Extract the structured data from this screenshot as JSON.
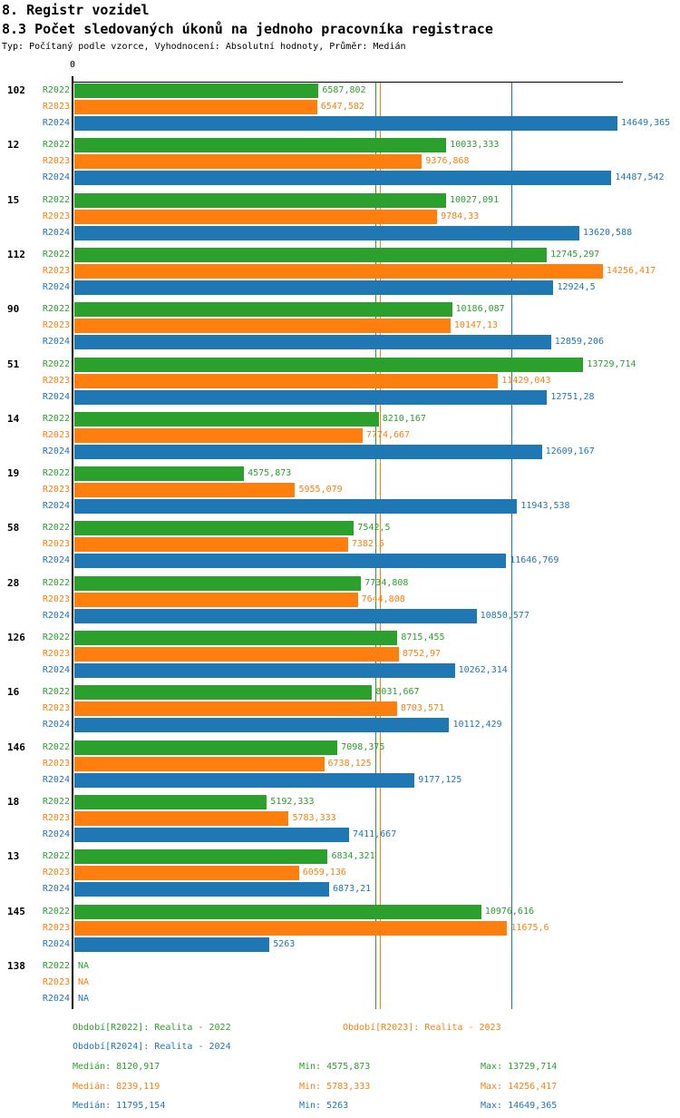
{
  "title": "8. Registr vozidel",
  "subtitle": "8.3 Počet sledovaných úkonů na jednoho pracovníka registrace",
  "meta": "Typ: Počítaný podle vzorce, Vyhodnocení: Absolutní hodnoty, Průměr: Medián",
  "colors": {
    "r2022": "#2ca02c",
    "r2023": "#ff7f0e",
    "r2024": "#1f77b4",
    "axis": "#000000"
  },
  "chart_data": {
    "type": "bar",
    "orientation": "horizontal",
    "axis_zero_label": "0",
    "grid": false,
    "xlim": [
      0,
      14649.365
    ],
    "na_text": "NA",
    "categories": [
      "102",
      "12",
      "15",
      "112",
      "90",
      "51",
      "14",
      "19",
      "58",
      "28",
      "126",
      "16",
      "146",
      "18",
      "13",
      "145",
      "138"
    ],
    "series": [
      {
        "name": "R2022",
        "color": "#2ca02c",
        "median": 8120.917,
        "values": [
          6587.802,
          10033.333,
          10027.091,
          12745.297,
          10186.087,
          13729.714,
          8210.167,
          4575.873,
          7542.5,
          7734.808,
          8715.455,
          8031.667,
          7098.375,
          5192.333,
          6834.321,
          10976.616,
          null
        ],
        "labels": [
          "6587,802",
          "10033,333",
          "10027,091",
          "12745,297",
          "10186,087",
          "13729,714",
          "8210,167",
          "4575,873",
          "7542,5",
          "7734,808",
          "8715,455",
          "8031,667",
          "7098,375",
          "5192,333",
          "6834,321",
          "10976,616",
          "NA"
        ]
      },
      {
        "name": "R2023",
        "color": "#ff7f0e",
        "median": 8239.119,
        "values": [
          6547.582,
          9376.868,
          9784.33,
          14256.417,
          10147.13,
          11429.043,
          7774.667,
          5955.079,
          7382.5,
          7644.808,
          8752.97,
          8703.571,
          6738.125,
          5783.333,
          6059.136,
          11675.6,
          null
        ],
        "labels": [
          "6547,582",
          "9376,868",
          "9784,33",
          "14256,417",
          "10147,13",
          "11429,043",
          "7774,667",
          "5955,079",
          "7382,5",
          "7644,808",
          "8752,97",
          "8703,571",
          "6738,125",
          "5783,333",
          "6059,136",
          "11675,6",
          "NA"
        ]
      },
      {
        "name": "R2024",
        "color": "#1f77b4",
        "median": 11795.154,
        "values": [
          14649.365,
          14487.542,
          13620.588,
          12924.5,
          12859.206,
          12751.28,
          12609.167,
          11943.538,
          11646.769,
          10850.577,
          10262.314,
          10112.429,
          9177.125,
          7411.667,
          6873.21,
          5263,
          null
        ],
        "labels": [
          "14649,365",
          "14487,542",
          "13620,588",
          "12924,5",
          "12859,206",
          "12751,28",
          "12609,167",
          "11943,538",
          "11646,769",
          "10850,577",
          "10262,314",
          "10112,429",
          "9177,125",
          "7411,667",
          "6873,21",
          "5263",
          "NA"
        ]
      }
    ]
  },
  "legend": {
    "r2022": "Období[R2022]: Realita - 2022",
    "r2023": "Období[R2023]: Realita - 2023",
    "r2024": "Období[R2024]: Realita - 2024"
  },
  "stats": {
    "r2022": {
      "median": "Medián: 8120,917",
      "min": "Min: 4575,873",
      "max": "Max: 13729,714"
    },
    "r2023": {
      "median": "Medián: 8239,119",
      "min": "Min: 5783,333",
      "max": "Max: 14256,417"
    },
    "r2024": {
      "median": "Medián: 11795,154",
      "min": "Min: 5263",
      "max": "Max: 14649,365"
    }
  }
}
